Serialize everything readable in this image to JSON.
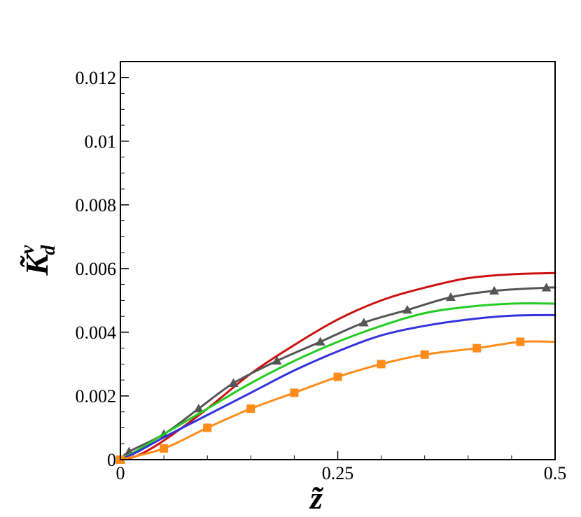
{
  "chart_data": {
    "type": "line",
    "xlabel": "z̃",
    "ylabel": "K̃",
    "ylabel_sup": "v",
    "ylabel_sub": "d",
    "xlim": [
      0,
      0.5
    ],
    "ylim": [
      0,
      0.0125
    ],
    "x_ticks": [
      0,
      0.25,
      0.5
    ],
    "x_tick_labels": [
      "0",
      "0.25",
      "0.5"
    ],
    "y_ticks": [
      0,
      0.002,
      0.004,
      0.006,
      0.008,
      0.01,
      0.012
    ],
    "y_tick_labels": [
      "0",
      "0.002",
      "0.004",
      "0.006",
      "0.008",
      "0.01",
      "0.012"
    ],
    "grid": false,
    "series": [
      {
        "color": "#cc1111",
        "marker": "none",
        "x": [
          0,
          0.02,
          0.05,
          0.1,
          0.15,
          0.2,
          0.25,
          0.3,
          0.35,
          0.4,
          0.45,
          0.5
        ],
        "y": [
          0,
          0.00013,
          0.0006,
          0.0016,
          0.0027,
          0.0036,
          0.0044,
          0.005,
          0.0054,
          0.0057,
          0.00582,
          0.00586
        ]
      },
      {
        "color": "#555555",
        "marker": "triangle",
        "x": [
          0,
          0.01,
          0.05,
          0.09,
          0.13,
          0.18,
          0.23,
          0.28,
          0.33,
          0.38,
          0.43,
          0.49,
          0.5
        ],
        "y": [
          0,
          0.00025,
          0.0008,
          0.0016,
          0.0024,
          0.0031,
          0.0037,
          0.0043,
          0.0047,
          0.0051,
          0.0053,
          0.0054,
          0.0054
        ]
      },
      {
        "color": "#22cc22",
        "marker": "none",
        "x": [
          0,
          0.02,
          0.05,
          0.1,
          0.15,
          0.2,
          0.25,
          0.3,
          0.35,
          0.4,
          0.45,
          0.5
        ],
        "y": [
          0,
          0.0003,
          0.0008,
          0.0016,
          0.0024,
          0.0031,
          0.0037,
          0.0042,
          0.0046,
          0.0048,
          0.0049,
          0.0049
        ]
      },
      {
        "color": "#3333dd",
        "marker": "none",
        "x": [
          0,
          0.02,
          0.05,
          0.1,
          0.15,
          0.2,
          0.25,
          0.3,
          0.35,
          0.4,
          0.45,
          0.5
        ],
        "y": [
          0,
          0.00025,
          0.0007,
          0.0014,
          0.0021,
          0.0028,
          0.0034,
          0.0039,
          0.0042,
          0.0044,
          0.00452,
          0.00454
        ]
      },
      {
        "color": "#ff8c1a",
        "marker": "square",
        "x": [
          0,
          0.05,
          0.1,
          0.15,
          0.2,
          0.25,
          0.3,
          0.35,
          0.41,
          0.46,
          0.5
        ],
        "y": [
          0,
          0.00035,
          0.001,
          0.0016,
          0.0021,
          0.0026,
          0.003,
          0.0033,
          0.0035,
          0.0037,
          0.0037
        ]
      }
    ]
  }
}
